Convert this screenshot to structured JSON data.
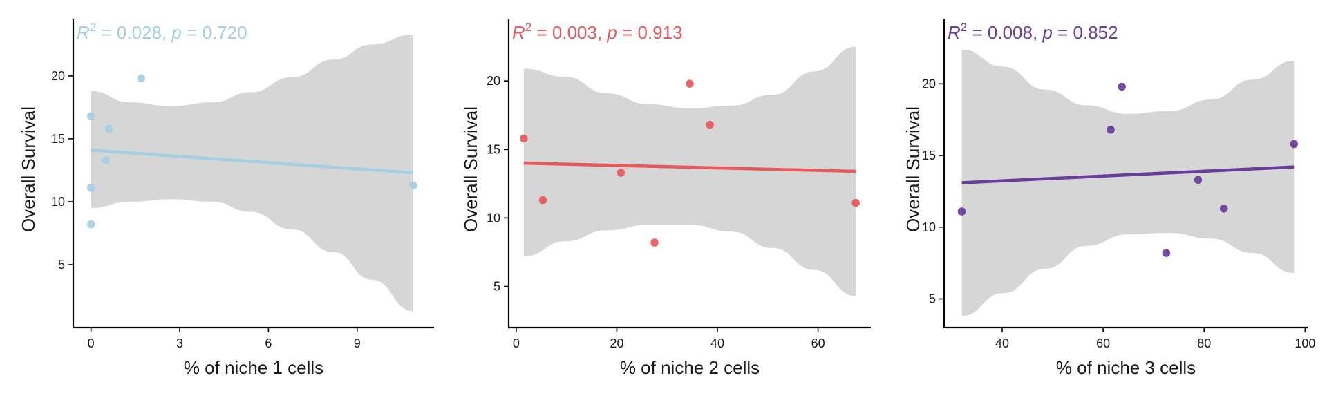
{
  "chart_data": [
    {
      "type": "scatter",
      "xlabel": "% of niche 1 cells",
      "ylabel": "Overall Survival",
      "color": "#a6cee3",
      "stats": {
        "r2_symbol": "R",
        "r2_exp": "2",
        "r2_value": " = 0.028, ",
        "p_symbol": "p",
        "p_value": " = 0.720"
      },
      "xlim": [
        -0.6,
        11.6
      ],
      "ylim": [
        0.0,
        24.5
      ],
      "xticks": [
        0,
        3,
        6,
        9
      ],
      "yticks": [
        5,
        10,
        15,
        20
      ],
      "points": [
        {
          "x": 0.0,
          "y": 16.8
        },
        {
          "x": 0.0,
          "y": 11.1
        },
        {
          "x": 0.0,
          "y": 8.2
        },
        {
          "x": 0.5,
          "y": 13.3
        },
        {
          "x": 0.6,
          "y": 15.8
        },
        {
          "x": 1.7,
          "y": 19.8
        },
        {
          "x": 10.9,
          "y": 11.3
        }
      ],
      "fit": {
        "x": [
          0.0,
          10.9
        ],
        "y": [
          14.1,
          12.3
        ]
      },
      "band": {
        "x": [
          0.0,
          1.3,
          2.7,
          4.1,
          5.4,
          6.8,
          8.2,
          9.5,
          10.9
        ],
        "lower": [
          9.5,
          10.0,
          10.2,
          10.0,
          9.2,
          7.8,
          6.0,
          3.8,
          1.3
        ],
        "upper": [
          18.8,
          17.9,
          17.6,
          17.9,
          18.7,
          19.9,
          21.3,
          22.5,
          23.3
        ]
      }
    },
    {
      "type": "scatter",
      "xlabel": "% of niche 2 cells",
      "ylabel": "Overall Survival",
      "color": "#e8595d",
      "stats": {
        "r2_symbol": "R",
        "r2_exp": "2",
        "r2_value": " = 0.003, ",
        "p_symbol": "p",
        "p_value": " = 0.913"
      },
      "xlim": [
        -1.5,
        70.5
      ],
      "ylim": [
        2.0,
        24.5
      ],
      "xticks": [
        0,
        20,
        40,
        60
      ],
      "yticks": [
        5,
        10,
        15,
        20
      ],
      "points": [
        {
          "x": 1.5,
          "y": 15.8
        },
        {
          "x": 5.3,
          "y": 11.3
        },
        {
          "x": 20.8,
          "y": 13.3
        },
        {
          "x": 27.5,
          "y": 8.2
        },
        {
          "x": 34.5,
          "y": 19.8
        },
        {
          "x": 38.5,
          "y": 16.8
        },
        {
          "x": 67.5,
          "y": 11.1
        }
      ],
      "fit": {
        "x": [
          1.5,
          67.5
        ],
        "y": [
          14.0,
          13.4
        ]
      },
      "band": {
        "x": [
          1.5,
          9.8,
          18.0,
          26.3,
          34.5,
          42.8,
          51.0,
          59.3,
          67.5
        ],
        "lower": [
          7.2,
          8.3,
          9.1,
          9.5,
          9.5,
          9.0,
          7.8,
          6.2,
          4.3
        ],
        "upper": [
          20.9,
          20.3,
          19.1,
          18.3,
          18.0,
          18.2,
          19.0,
          20.7,
          22.5
        ]
      }
    },
    {
      "type": "scatter",
      "xlabel": "% of niche 3 cells",
      "ylabel": "Overall Survival",
      "color": "#6a3d9a",
      "stats": {
        "r2_symbol": "R",
        "r2_exp": "2",
        "r2_value": " = 0.008, ",
        "p_symbol": "p",
        "p_value": " = 0.852"
      },
      "xlim": [
        28.5,
        100.5
      ],
      "ylim": [
        3.0,
        24.5
      ],
      "xticks": [
        40,
        60,
        80,
        100
      ],
      "yticks": [
        5,
        10,
        15,
        20
      ],
      "points": [
        {
          "x": 32.0,
          "y": 11.1
        },
        {
          "x": 61.5,
          "y": 16.8
        },
        {
          "x": 63.7,
          "y": 19.8
        },
        {
          "x": 72.5,
          "y": 8.2
        },
        {
          "x": 78.8,
          "y": 13.3
        },
        {
          "x": 83.9,
          "y": 11.3
        },
        {
          "x": 97.8,
          "y": 15.8
        }
      ],
      "fit": {
        "x": [
          32.0,
          97.8
        ],
        "y": [
          13.1,
          14.2
        ]
      },
      "band": {
        "x": [
          32.0,
          40.2,
          48.5,
          56.7,
          64.9,
          73.1,
          81.4,
          89.6,
          97.8
        ],
        "lower": [
          3.8,
          5.4,
          7.1,
          8.7,
          9.5,
          9.6,
          9.2,
          8.2,
          6.8
        ],
        "upper": [
          22.4,
          21.2,
          19.6,
          18.5,
          17.9,
          18.1,
          18.9,
          20.3,
          21.6
        ]
      }
    }
  ]
}
